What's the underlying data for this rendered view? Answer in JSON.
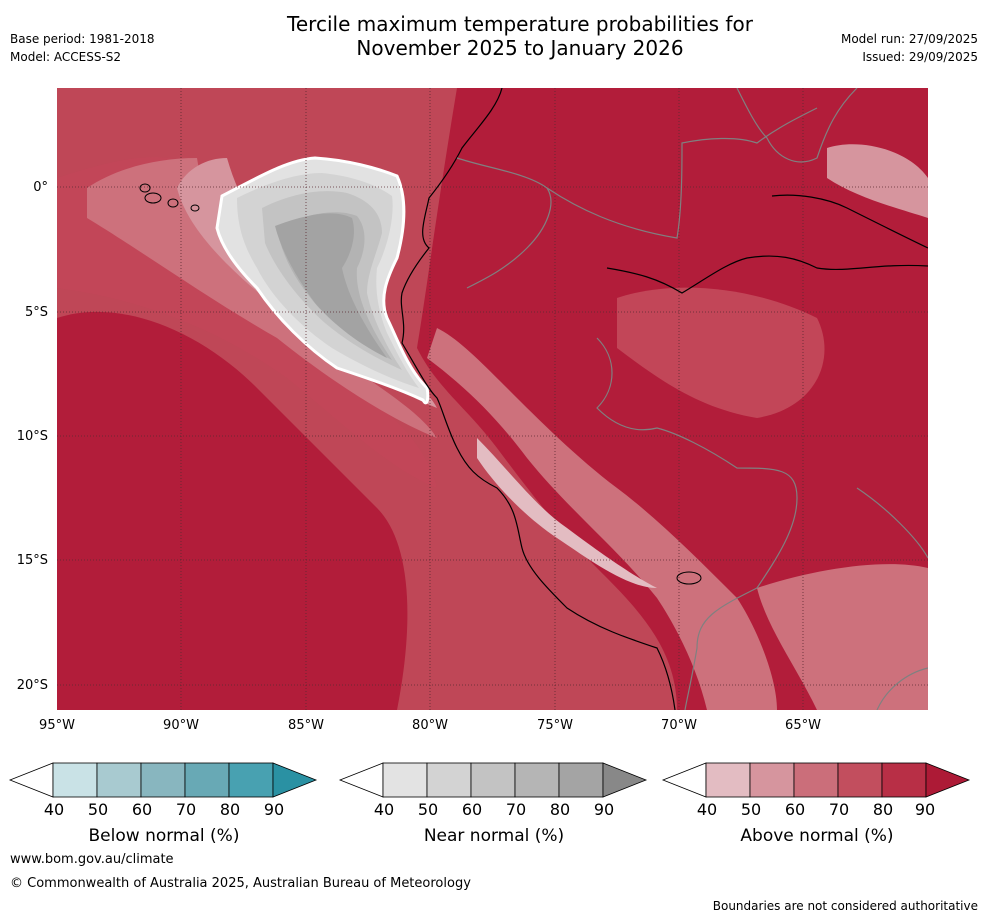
{
  "header": {
    "title_line1": "Tercile maximum temperature probabilities for",
    "title_line2": "November 2025 to January 2026",
    "base_period": "Base period: 1981-2018",
    "model": "Model: ACCESS-S2",
    "model_run": "Model run: 27/09/2025",
    "issued": "Issued: 29/09/2025"
  },
  "map": {
    "lat_labels": [
      "0°",
      "5°S",
      "10°S",
      "15°S",
      "20°S"
    ],
    "lon_labels": [
      "95°W",
      "90°W",
      "85°W",
      "80°W",
      "75°W",
      "70°W",
      "65°W"
    ],
    "colors": {
      "ocean_base": "#bf4757",
      "above_90": "#b21d3a",
      "above_80": "#c24658",
      "above_70": "#cd717c",
      "above_60": "#d6959e",
      "above_50": "#e3bcc2",
      "near_50": "#e2e2e2",
      "near_60": "#d3d3d3",
      "near_70": "#c3c3c3",
      "near_80": "#b3b3b3",
      "near_90": "#a3a3a3"
    }
  },
  "legend": {
    "below": {
      "label": "Below normal (%)",
      "ticks": [
        "40",
        "50",
        "60",
        "70",
        "80",
        "90"
      ],
      "colors": [
        "#ffffff",
        "#c9e2e6",
        "#a8cad0",
        "#88b6bf",
        "#68a9b5",
        "#48a1b1",
        "#2a91a3"
      ]
    },
    "near": {
      "label": "Near normal (%)",
      "ticks": [
        "40",
        "50",
        "60",
        "70",
        "80",
        "90"
      ],
      "colors": [
        "#ffffff",
        "#e3e3e3",
        "#d3d3d3",
        "#c3c3c3",
        "#b5b5b5",
        "#a4a4a4",
        "#888888"
      ]
    },
    "above": {
      "label": "Above normal (%)",
      "ticks": [
        "40",
        "50",
        "60",
        "70",
        "80",
        "90"
      ],
      "colors": [
        "#ffffff",
        "#e3bcc2",
        "#d6959e",
        "#cb6e7a",
        "#c24e5e",
        "#b82f46",
        "#ad1a36"
      ]
    }
  },
  "footer": {
    "website": "www.bom.gov.au/climate",
    "copyright": "© Commonwealth of Australia 2025, Australian Bureau of Meteorology",
    "disclaimer": "Boundaries are not considered authoritative"
  }
}
